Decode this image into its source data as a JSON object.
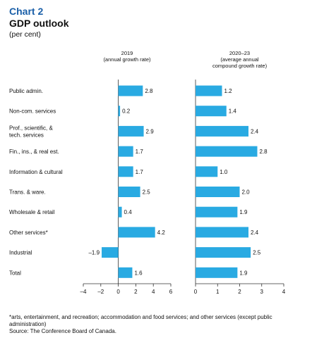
{
  "header": {
    "label": "Chart 2",
    "title": "GDP outlook",
    "unit": "(per cent)"
  },
  "chart_data": {
    "type": "bar",
    "orientation": "horizontal",
    "categories": [
      [
        "Public admin."
      ],
      [
        "Non-com. services"
      ],
      [
        "Prof., scientific, &",
        "tech. services"
      ],
      [
        "Fin., ins., & real est."
      ],
      [
        "Information & cultural"
      ],
      [
        "Trans. & ware."
      ],
      [
        "Wholesale & retail"
      ],
      [
        "Other services*"
      ],
      [
        "Industrial"
      ],
      [
        "Total"
      ]
    ],
    "panels": [
      {
        "title": [
          "2019",
          "(annual growth rate)"
        ],
        "values": [
          2.8,
          0.2,
          2.9,
          1.7,
          1.7,
          2.5,
          0.4,
          4.2,
          -1.9,
          1.6
        ],
        "value_labels": [
          "2.8",
          "0.2",
          "2.9",
          "1.7",
          "1.7",
          "2.5",
          "0.4",
          "4.2",
          "–1.9",
          "1.6"
        ],
        "xlim": [
          -4,
          6
        ],
        "ticks": [
          -4,
          -2,
          0,
          2,
          4,
          6
        ],
        "tick_labels": [
          "–4",
          "–2",
          "0",
          "2",
          "4",
          "6"
        ]
      },
      {
        "title": [
          "2020–23",
          "(average annual",
          "compound growth rate)"
        ],
        "values": [
          1.2,
          1.4,
          2.4,
          2.8,
          1.0,
          2.0,
          1.9,
          2.4,
          2.5,
          1.9
        ],
        "value_labels": [
          "1.2",
          "1.4",
          "2.4",
          "2.8",
          "1.0",
          "2.0",
          "1.9",
          "2.4",
          "2.5",
          "1.9"
        ],
        "xlim": [
          0,
          4
        ],
        "ticks": [
          0,
          1,
          2,
          3,
          4
        ],
        "tick_labels": [
          "0",
          "1",
          "2",
          "3",
          "4"
        ]
      }
    ],
    "colors": {
      "bar": "#29aae2",
      "axis": "#333333"
    },
    "grid": false,
    "legend": "none"
  },
  "footnote": {
    "note": "*arts, entertainment, and recreation; accommodation and food services; and other services (except public administration)",
    "source": "Source: The Conference Board of Canada."
  }
}
